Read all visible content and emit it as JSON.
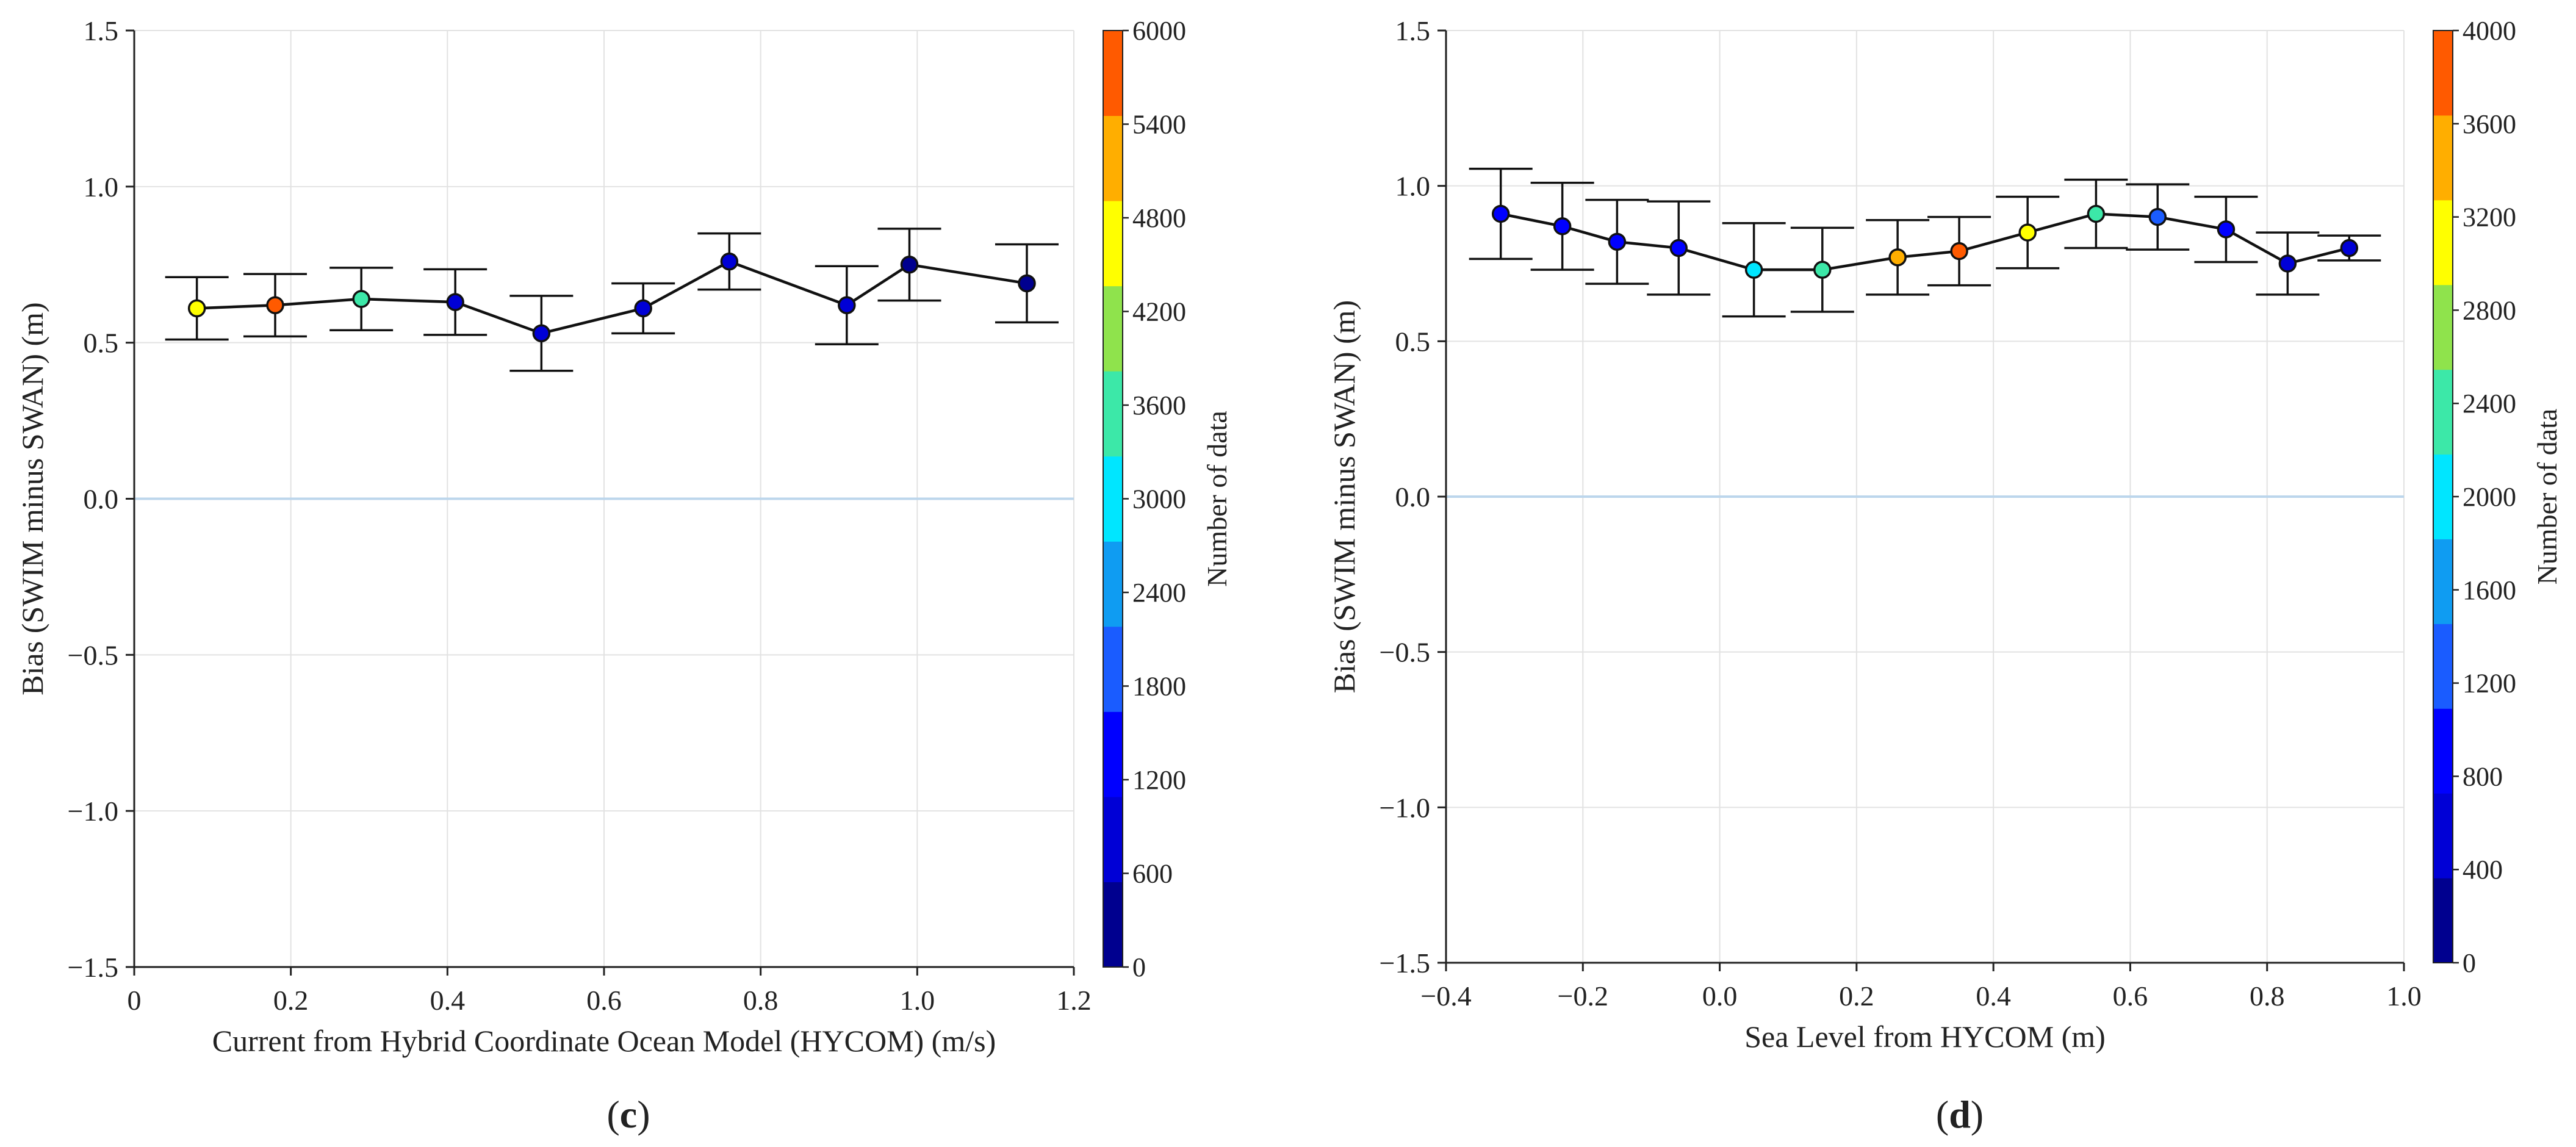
{
  "chart_data": [
    {
      "type": "scatter",
      "panel": "c",
      "xlabel": "Current from Hybrid Coordinate Ocean Model (HYCOM) (m/s)",
      "ylabel": "Bias (SWIM minus SWAN) (m)",
      "xlim": [
        0,
        1.2
      ],
      "ylim": [
        -1.5,
        1.5
      ],
      "xticks": [
        "0",
        "0.2",
        "0.4",
        "0.6",
        "0.8",
        "1.0",
        "1.2"
      ],
      "yticks": [
        "−1.5",
        "−1.0",
        "−0.5",
        "0.0",
        "0.5",
        "1.0",
        "1.5"
      ],
      "grid": true,
      "points": [
        {
          "x": 0.08,
          "y": 0.61,
          "err": 0.1,
          "count": 4500
        },
        {
          "x": 0.18,
          "y": 0.62,
          "err": 0.1,
          "count": 5700
        },
        {
          "x": 0.29,
          "y": 0.64,
          "err": 0.1,
          "count": 3300
        },
        {
          "x": 0.41,
          "y": 0.63,
          "err": 0.105,
          "count": 900
        },
        {
          "x": 0.52,
          "y": 0.53,
          "err": 0.12,
          "count": 800
        },
        {
          "x": 0.65,
          "y": 0.61,
          "err": 0.08,
          "count": 1000
        },
        {
          "x": 0.76,
          "y": 0.76,
          "err": 0.09,
          "count": 800
        },
        {
          "x": 0.91,
          "y": 0.62,
          "err": 0.125,
          "count": 900
        },
        {
          "x": 0.99,
          "y": 0.75,
          "err": 0.115,
          "count": 400
        },
        {
          "x": 1.14,
          "y": 0.69,
          "err": 0.125,
          "count": 200
        }
      ],
      "colorbar": {
        "label": "Number of data",
        "min": 0,
        "max": 6000,
        "ticks": [
          "0",
          "600",
          "1200",
          "1800",
          "2400",
          "3000",
          "3600",
          "4200",
          "4800",
          "5400",
          "6000"
        ]
      }
    },
    {
      "type": "scatter",
      "panel": "d",
      "xlabel": "Sea Level from HYCOM (m)",
      "ylabel": "Bias (SWIM minus SWAN) (m)",
      "xlim": [
        -0.4,
        1.0
      ],
      "ylim": [
        -1.5,
        1.5
      ],
      "xticks": [
        "−0.4",
        "−0.2",
        "0.0",
        "0.2",
        "0.4",
        "0.6",
        "0.8",
        "1.0"
      ],
      "yticks": [
        "−1.5",
        "−1.0",
        "−0.5",
        "0.0",
        "0.5",
        "1.0",
        "1.5"
      ],
      "grid": true,
      "points": [
        {
          "x": -0.32,
          "y": 0.91,
          "err": 0.145,
          "count": 800
        },
        {
          "x": -0.23,
          "y": 0.87,
          "err": 0.14,
          "count": 1000
        },
        {
          "x": -0.15,
          "y": 0.82,
          "err": 0.135,
          "count": 900
        },
        {
          "x": -0.06,
          "y": 0.8,
          "err": 0.15,
          "count": 1000
        },
        {
          "x": 0.05,
          "y": 0.73,
          "err": 0.15,
          "count": 1900
        },
        {
          "x": 0.15,
          "y": 0.73,
          "err": 0.135,
          "count": 2200
        },
        {
          "x": 0.26,
          "y": 0.77,
          "err": 0.12,
          "count": 3500
        },
        {
          "x": 0.35,
          "y": 0.79,
          "err": 0.11,
          "count": 3800
        },
        {
          "x": 0.45,
          "y": 0.85,
          "err": 0.115,
          "count": 3100
        },
        {
          "x": 0.55,
          "y": 0.91,
          "err": 0.11,
          "count": 2300
        },
        {
          "x": 0.64,
          "y": 0.9,
          "err": 0.105,
          "count": 1300
        },
        {
          "x": 0.74,
          "y": 0.86,
          "err": 0.105,
          "count": 900
        },
        {
          "x": 0.83,
          "y": 0.75,
          "err": 0.1,
          "count": 600
        },
        {
          "x": 0.92,
          "y": 0.8,
          "err": 0.04,
          "count": 600
        }
      ],
      "colorbar": {
        "label": "Number of data",
        "min": 0,
        "max": 4000,
        "ticks": [
          "0",
          "400",
          "800",
          "1200",
          "1600",
          "2000",
          "2400",
          "2800",
          "3200",
          "3600",
          "4000"
        ]
      }
    }
  ],
  "panel_labels": {
    "c_open": "(",
    "c_letter": "c",
    "c_close": ")",
    "d_open": "(",
    "d_letter": "d",
    "d_close": ")"
  },
  "colors": {
    "line": "#111111",
    "grid": "#e2e2e2",
    "zero_line": "#bcd6ec",
    "colormap": [
      "#00008f",
      "#0000d6",
      "#0000ff",
      "#1a5cff",
      "#0f9cf2",
      "#00e6ff",
      "#3ce8a8",
      "#8fe34c",
      "#ffff00",
      "#ffae00",
      "#ff5a00"
    ]
  }
}
